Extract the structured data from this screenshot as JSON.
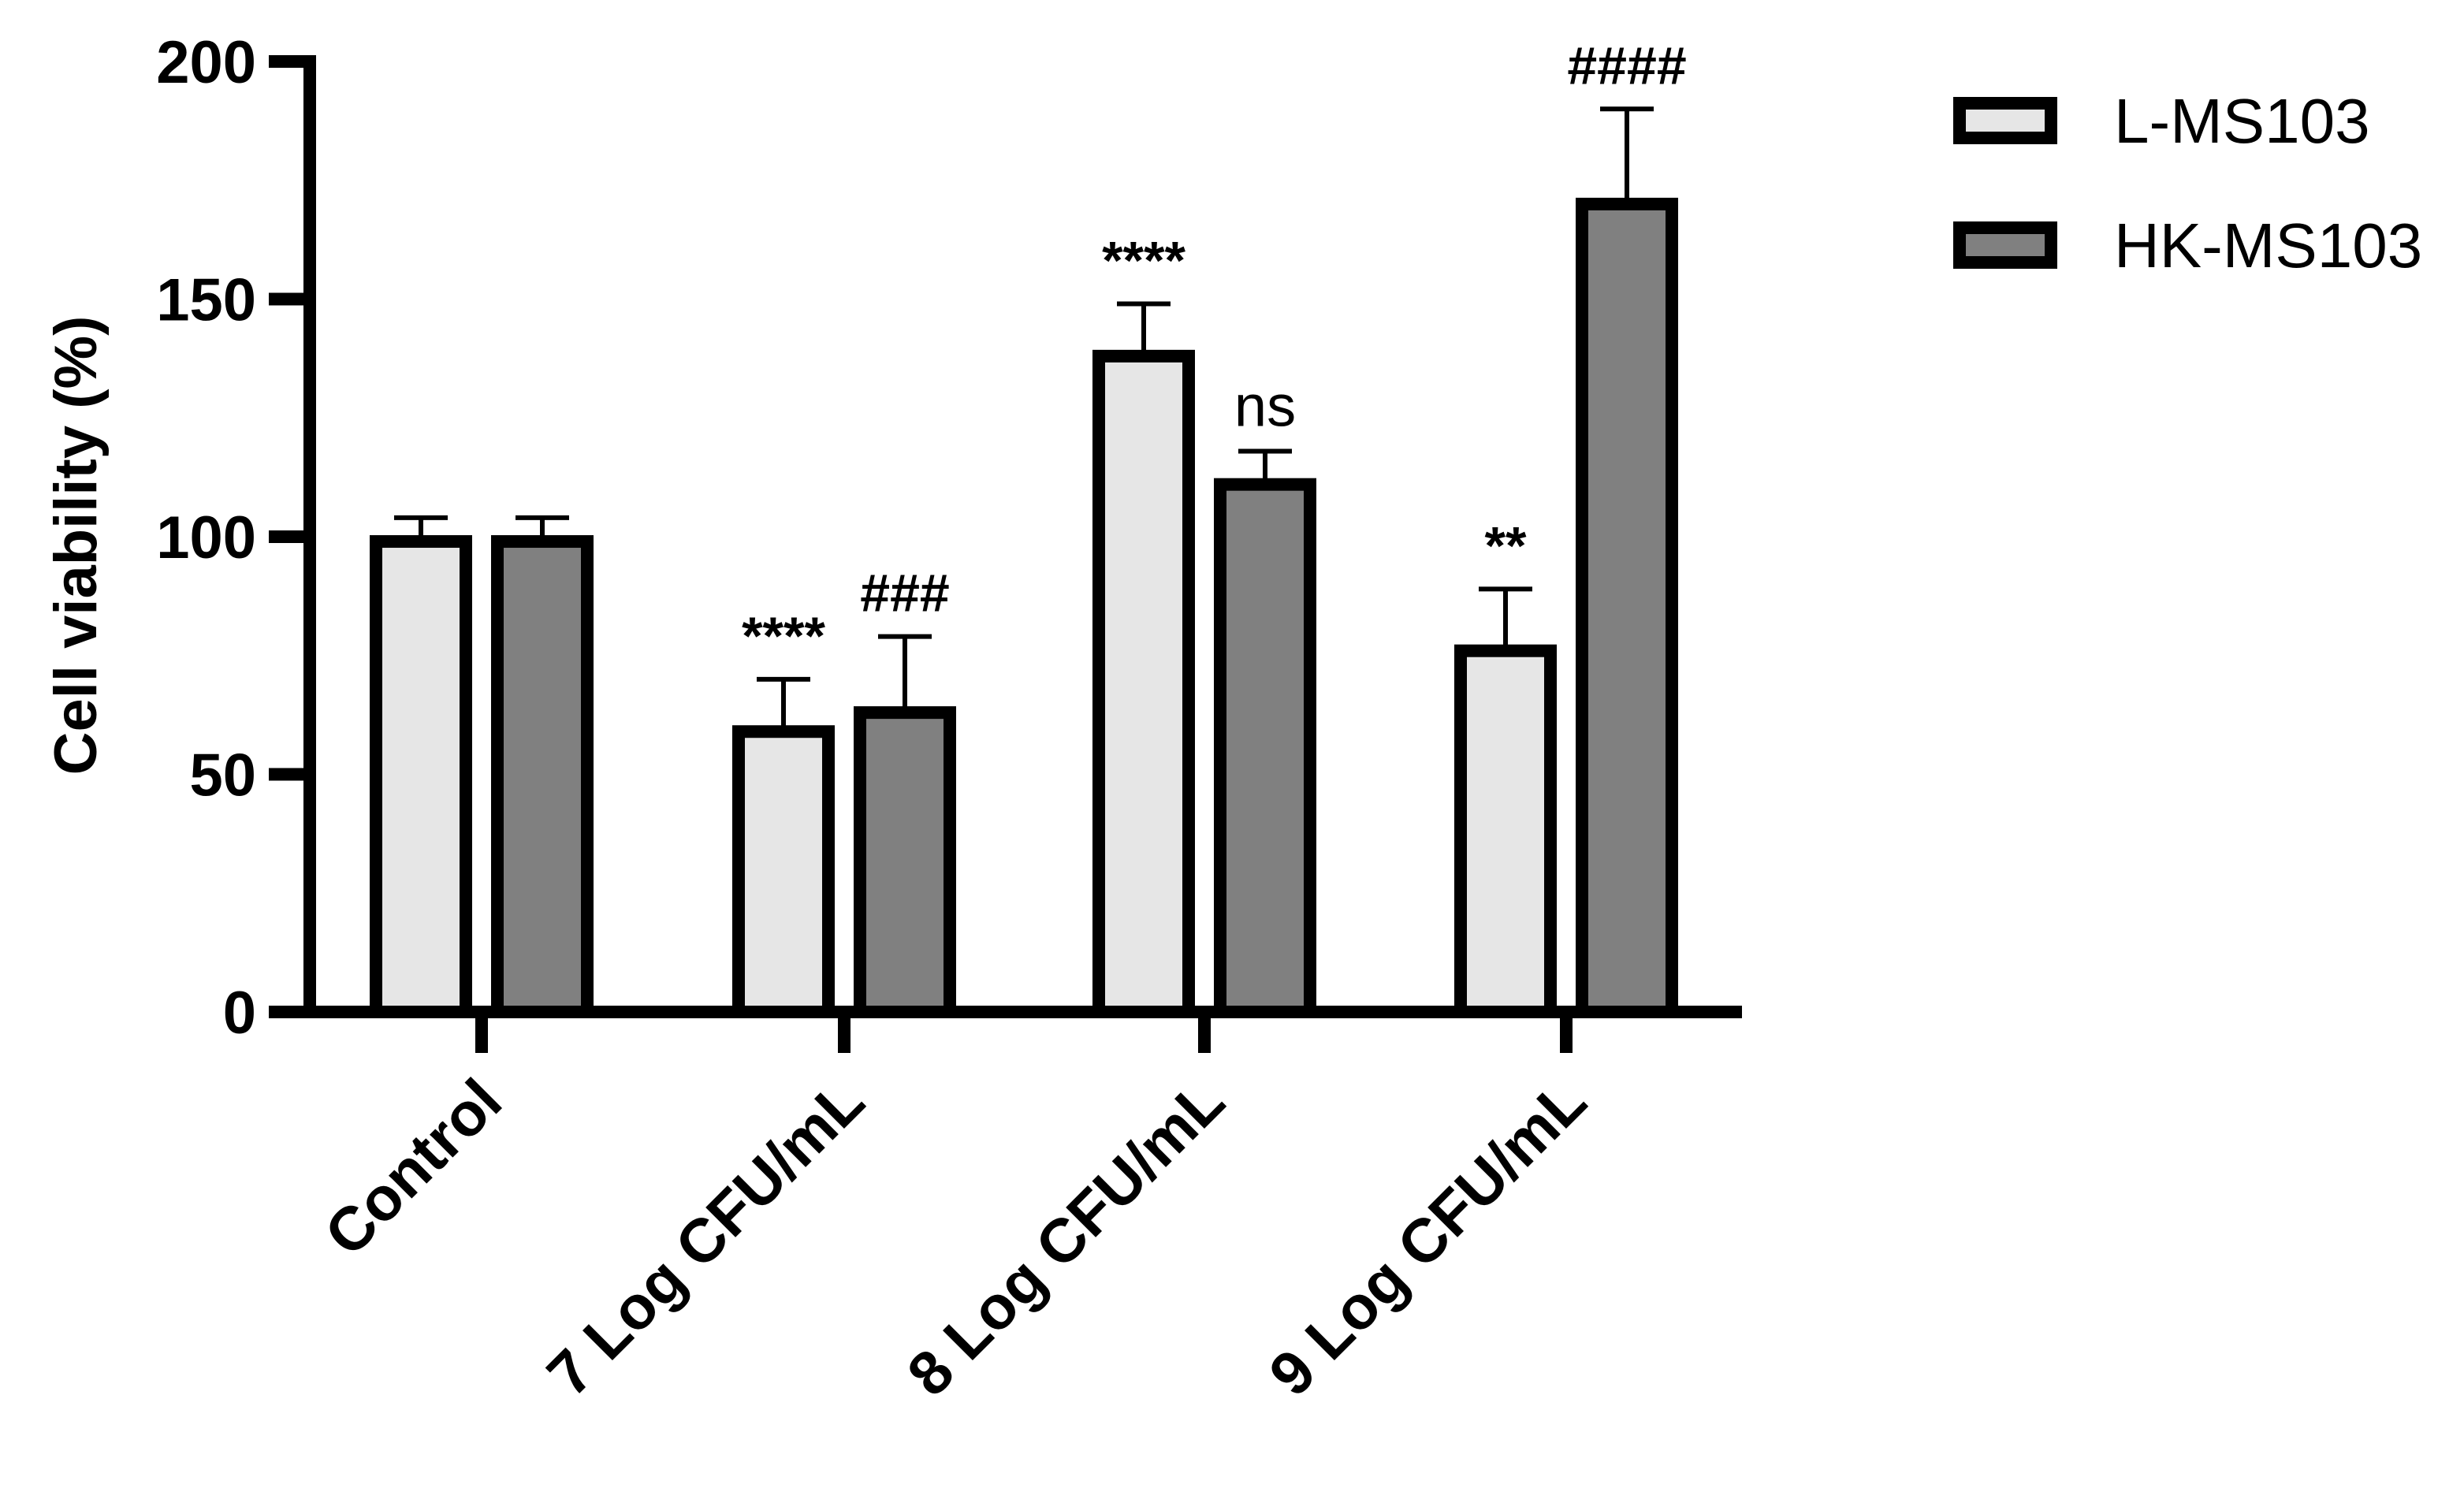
{
  "chart_data": {
    "type": "bar",
    "ylabel": "Cell viability (%)",
    "xlabel": "",
    "ylim": [
      0,
      200
    ],
    "yticks": [
      0,
      50,
      100,
      150,
      200
    ],
    "categories": [
      "Control",
      "7 Log CFU/mL",
      "8 Log CFU/mL",
      "9 Log CFU/mL"
    ],
    "series": [
      {
        "name": "L-MS103",
        "color": "#e6e6e6",
        "values": [
          99,
          59,
          138,
          76
        ],
        "errors": [
          5,
          11,
          11,
          13
        ],
        "significance": [
          "",
          "****",
          "****",
          "**"
        ]
      },
      {
        "name": "HK-MS103",
        "color": "#808080",
        "values": [
          99,
          63,
          111,
          170
        ],
        "errors": [
          5,
          16,
          7,
          20
        ],
        "significance": [
          "",
          "###",
          "ns",
          "####"
        ]
      }
    ],
    "legend_position": "top-right",
    "grid": false
  }
}
